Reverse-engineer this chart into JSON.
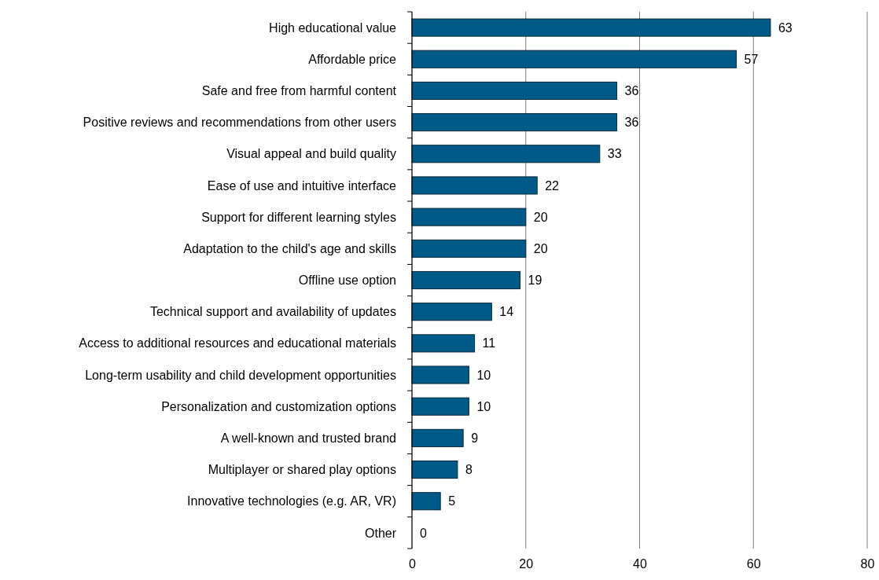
{
  "chart_data": {
    "type": "bar",
    "orientation": "horizontal",
    "categories": [
      "High educational value",
      "Affordable price",
      "Safe and free from harmful content",
      "Positive reviews and recommendations from other users",
      "Visual appeal and build quality",
      "Ease of use and intuitive interface",
      "Support for different learning styles",
      "Adaptation to the child's age and skills",
      "Offline use option",
      "Technical support and availability of updates",
      "Access to additional resources and educational materials",
      "Long-term usability and child development opportunities",
      "Personalization and customization options",
      "A well-known and trusted brand",
      "Multiplayer or shared play options",
      "Innovative technologies (e.g. AR, VR)",
      "Other"
    ],
    "values": [
      63,
      57,
      36,
      36,
      33,
      22,
      20,
      20,
      19,
      14,
      11,
      10,
      10,
      9,
      8,
      5,
      0
    ],
    "color": "#005a87",
    "xlim": [
      0,
      80
    ],
    "xticks": [
      0,
      20,
      40,
      60,
      80
    ],
    "grid": "x",
    "data_labels": true
  }
}
